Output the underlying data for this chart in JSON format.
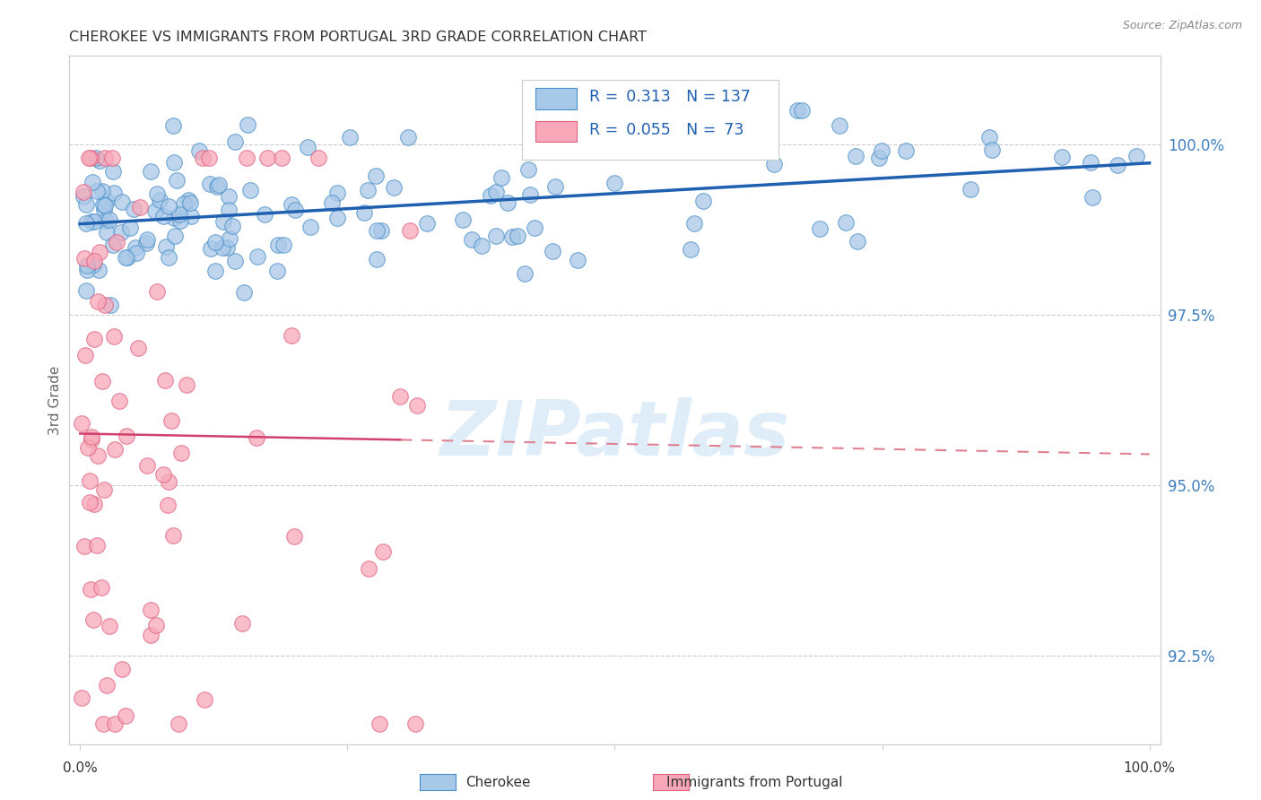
{
  "title": "CHEROKEE VS IMMIGRANTS FROM PORTUGAL 3RD GRADE CORRELATION CHART",
  "source": "Source: ZipAtlas.com",
  "ylabel": "3rd Grade",
  "y_tick_labels": [
    "92.5%",
    "95.0%",
    "97.5%",
    "100.0%"
  ],
  "y_tick_values": [
    92.5,
    95.0,
    97.5,
    100.0
  ],
  "xlim": [
    -1,
    101
  ],
  "ylim": [
    91.2,
    101.3
  ],
  "legend_blue_r_val": "0.313",
  "legend_blue_n_val": "137",
  "legend_pink_r_val": "0.055",
  "legend_pink_n_val": "73",
  "watermark": "ZIPatlas",
  "blue_fill_color": "#a8c8e8",
  "blue_edge_color": "#4a90c8",
  "blue_line_color": "#2060b0",
  "pink_fill_color": "#f8a8b8",
  "pink_edge_color": "#e06080",
  "pink_line_color": "#d04070",
  "pink_dash_color": "#e08090",
  "background_color": "#ffffff",
  "grid_color": "#cccccc",
  "right_tick_color": "#4080c0",
  "title_color": "#333333",
  "source_color": "#888888"
}
